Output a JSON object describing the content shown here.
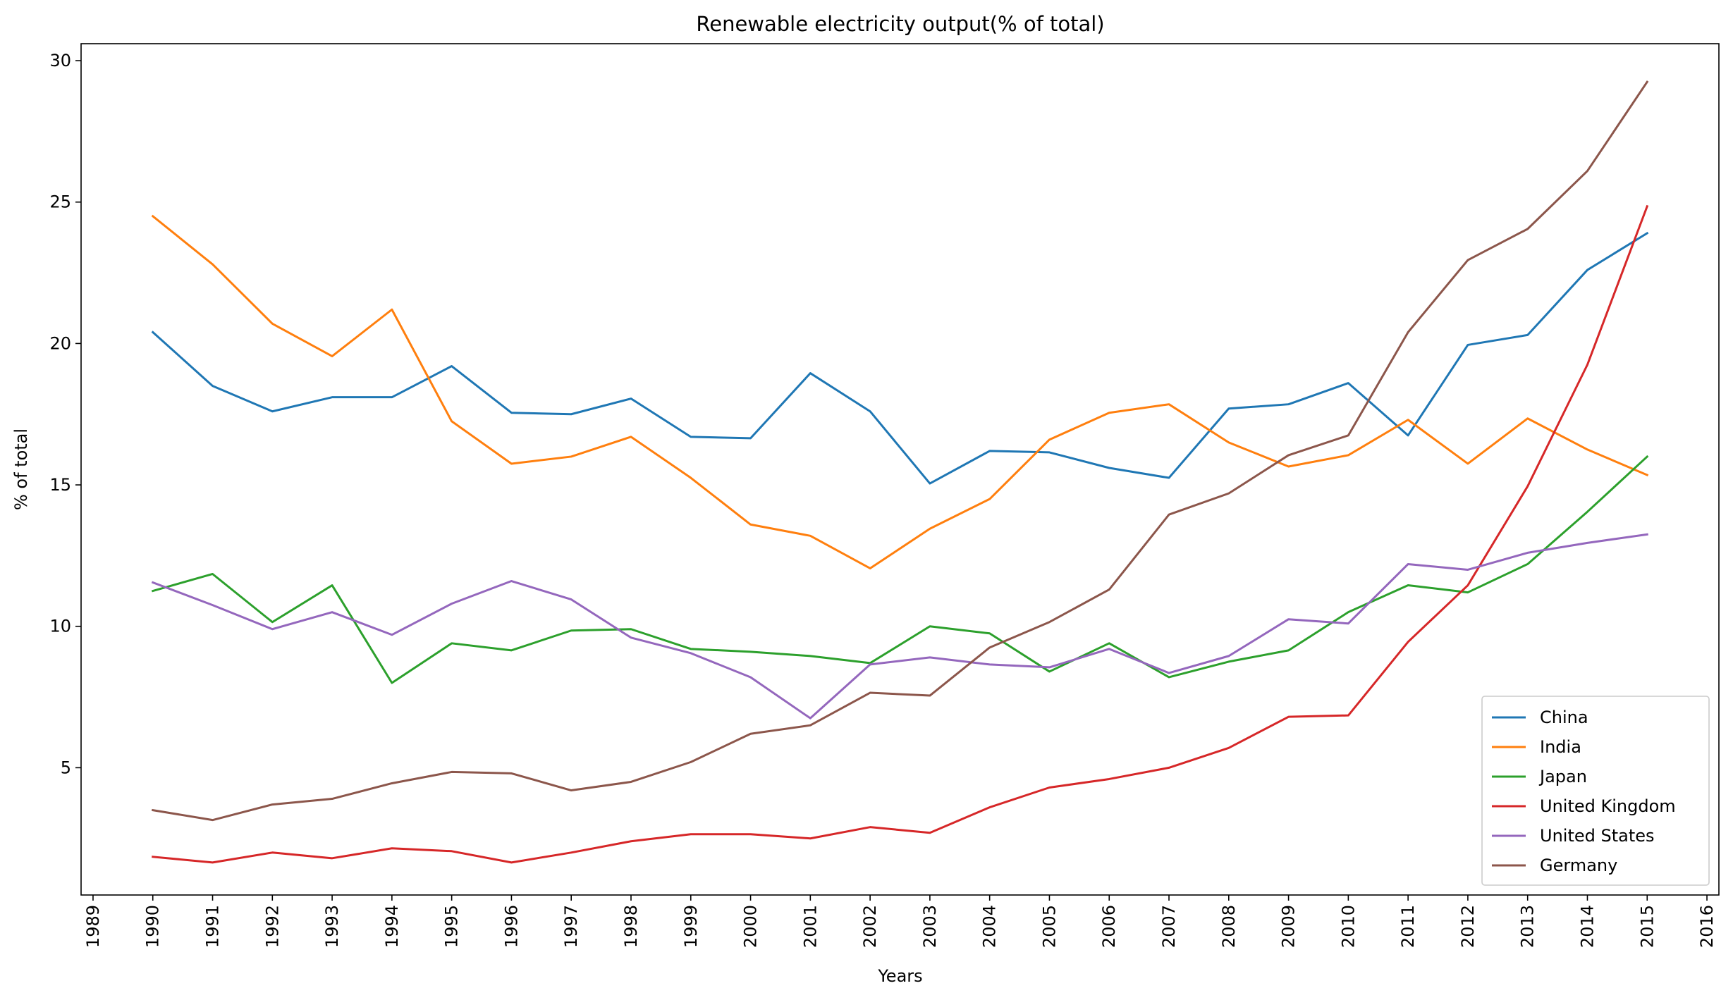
{
  "chart_data": {
    "type": "line",
    "title": "Renewable electricity output(% of total)",
    "xlabel": "Years",
    "ylabel": "% of total",
    "x_ticks": [
      1989,
      1990,
      1991,
      1992,
      1993,
      1994,
      1995,
      1996,
      1997,
      1998,
      1999,
      2000,
      2001,
      2002,
      2003,
      2004,
      2005,
      2006,
      2007,
      2008,
      2009,
      2010,
      2011,
      2012,
      2013,
      2014,
      2015,
      2016
    ],
    "y_ticks": [
      5,
      10,
      15,
      20,
      25,
      30
    ],
    "xlim": [
      1988.8,
      2016.2
    ],
    "ylim": [
      0.5,
      30.6
    ],
    "x": [
      1990,
      1991,
      1992,
      1993,
      1994,
      1995,
      1996,
      1997,
      1998,
      1999,
      2000,
      2001,
      2002,
      2003,
      2004,
      2005,
      2006,
      2007,
      2008,
      2009,
      2010,
      2011,
      2012,
      2013,
      2014,
      2015
    ],
    "grid": false,
    "legend_position": "lower-right",
    "series": [
      {
        "name": "China",
        "color": "#1f77b4",
        "values": [
          20.4,
          18.5,
          17.6,
          18.1,
          18.1,
          19.2,
          17.55,
          17.5,
          18.05,
          16.7,
          16.65,
          18.95,
          17.6,
          15.05,
          16.2,
          16.15,
          15.6,
          15.25,
          17.7,
          17.85,
          18.6,
          16.75,
          19.95,
          20.3,
          22.6,
          23.9
        ]
      },
      {
        "name": "India",
        "color": "#ff7f0e",
        "values": [
          24.5,
          22.8,
          20.7,
          19.55,
          21.2,
          17.25,
          15.75,
          16.0,
          16.7,
          15.25,
          13.6,
          13.2,
          12.05,
          13.45,
          14.5,
          16.6,
          17.55,
          17.85,
          16.5,
          15.65,
          16.05,
          17.3,
          15.75,
          17.35,
          16.25,
          15.35
        ]
      },
      {
        "name": "Japan",
        "color": "#2ca02c",
        "values": [
          11.25,
          11.85,
          10.15,
          11.45,
          8.0,
          9.4,
          9.15,
          9.85,
          9.9,
          9.2,
          9.1,
          8.95,
          8.7,
          10.0,
          9.75,
          8.4,
          9.4,
          8.2,
          8.75,
          9.15,
          10.5,
          11.45,
          11.2,
          12.2,
          14.05,
          16.0
        ]
      },
      {
        "name": "United Kingdom",
        "color": "#d62728",
        "values": [
          1.85,
          1.65,
          2.0,
          1.8,
          2.15,
          2.05,
          1.65,
          2.0,
          2.4,
          2.65,
          2.65,
          2.5,
          2.9,
          2.7,
          3.6,
          4.3,
          4.6,
          5.0,
          5.7,
          6.8,
          6.85,
          9.45,
          11.45,
          14.95,
          19.25,
          24.85
        ]
      },
      {
        "name": "United States",
        "color": "#9467bd",
        "values": [
          11.55,
          10.75,
          9.9,
          10.5,
          9.7,
          10.8,
          11.6,
          10.95,
          9.6,
          9.05,
          8.2,
          6.75,
          8.65,
          8.9,
          8.65,
          8.55,
          9.2,
          8.35,
          8.95,
          10.25,
          10.1,
          12.2,
          12.0,
          12.6,
          12.95,
          13.25
        ]
      },
      {
        "name": "Germany",
        "color": "#8c564b",
        "values": [
          3.5,
          3.15,
          3.7,
          3.9,
          4.45,
          4.85,
          4.8,
          4.2,
          4.5,
          5.2,
          6.2,
          6.5,
          7.65,
          7.55,
          9.25,
          10.15,
          11.3,
          13.95,
          14.7,
          16.05,
          16.75,
          20.4,
          22.95,
          24.05,
          26.1,
          29.25
        ]
      }
    ]
  }
}
